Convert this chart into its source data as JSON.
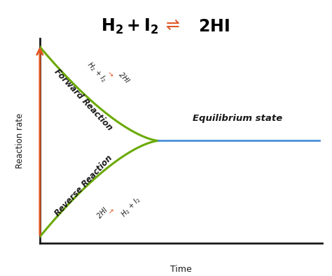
{
  "forward_label": "Forward Reaction",
  "reverse_label": "Reverse Reaction",
  "equilibrium_label": "Equilibrium state",
  "xlabel": "Time",
  "ylabel": "Reaction rate",
  "curve_color": "#6aaa00",
  "eq_line_color": "#4a90d9",
  "arrow_color": "#e05520",
  "axis_color": "#1a1a1a",
  "bg_color": "#ffffff",
  "text_color": "#1a1a1a",
  "x_eq": 4.2,
  "y_eq": 5.0,
  "xlim": [
    0,
    10
  ],
  "ylim": [
    0,
    10
  ]
}
